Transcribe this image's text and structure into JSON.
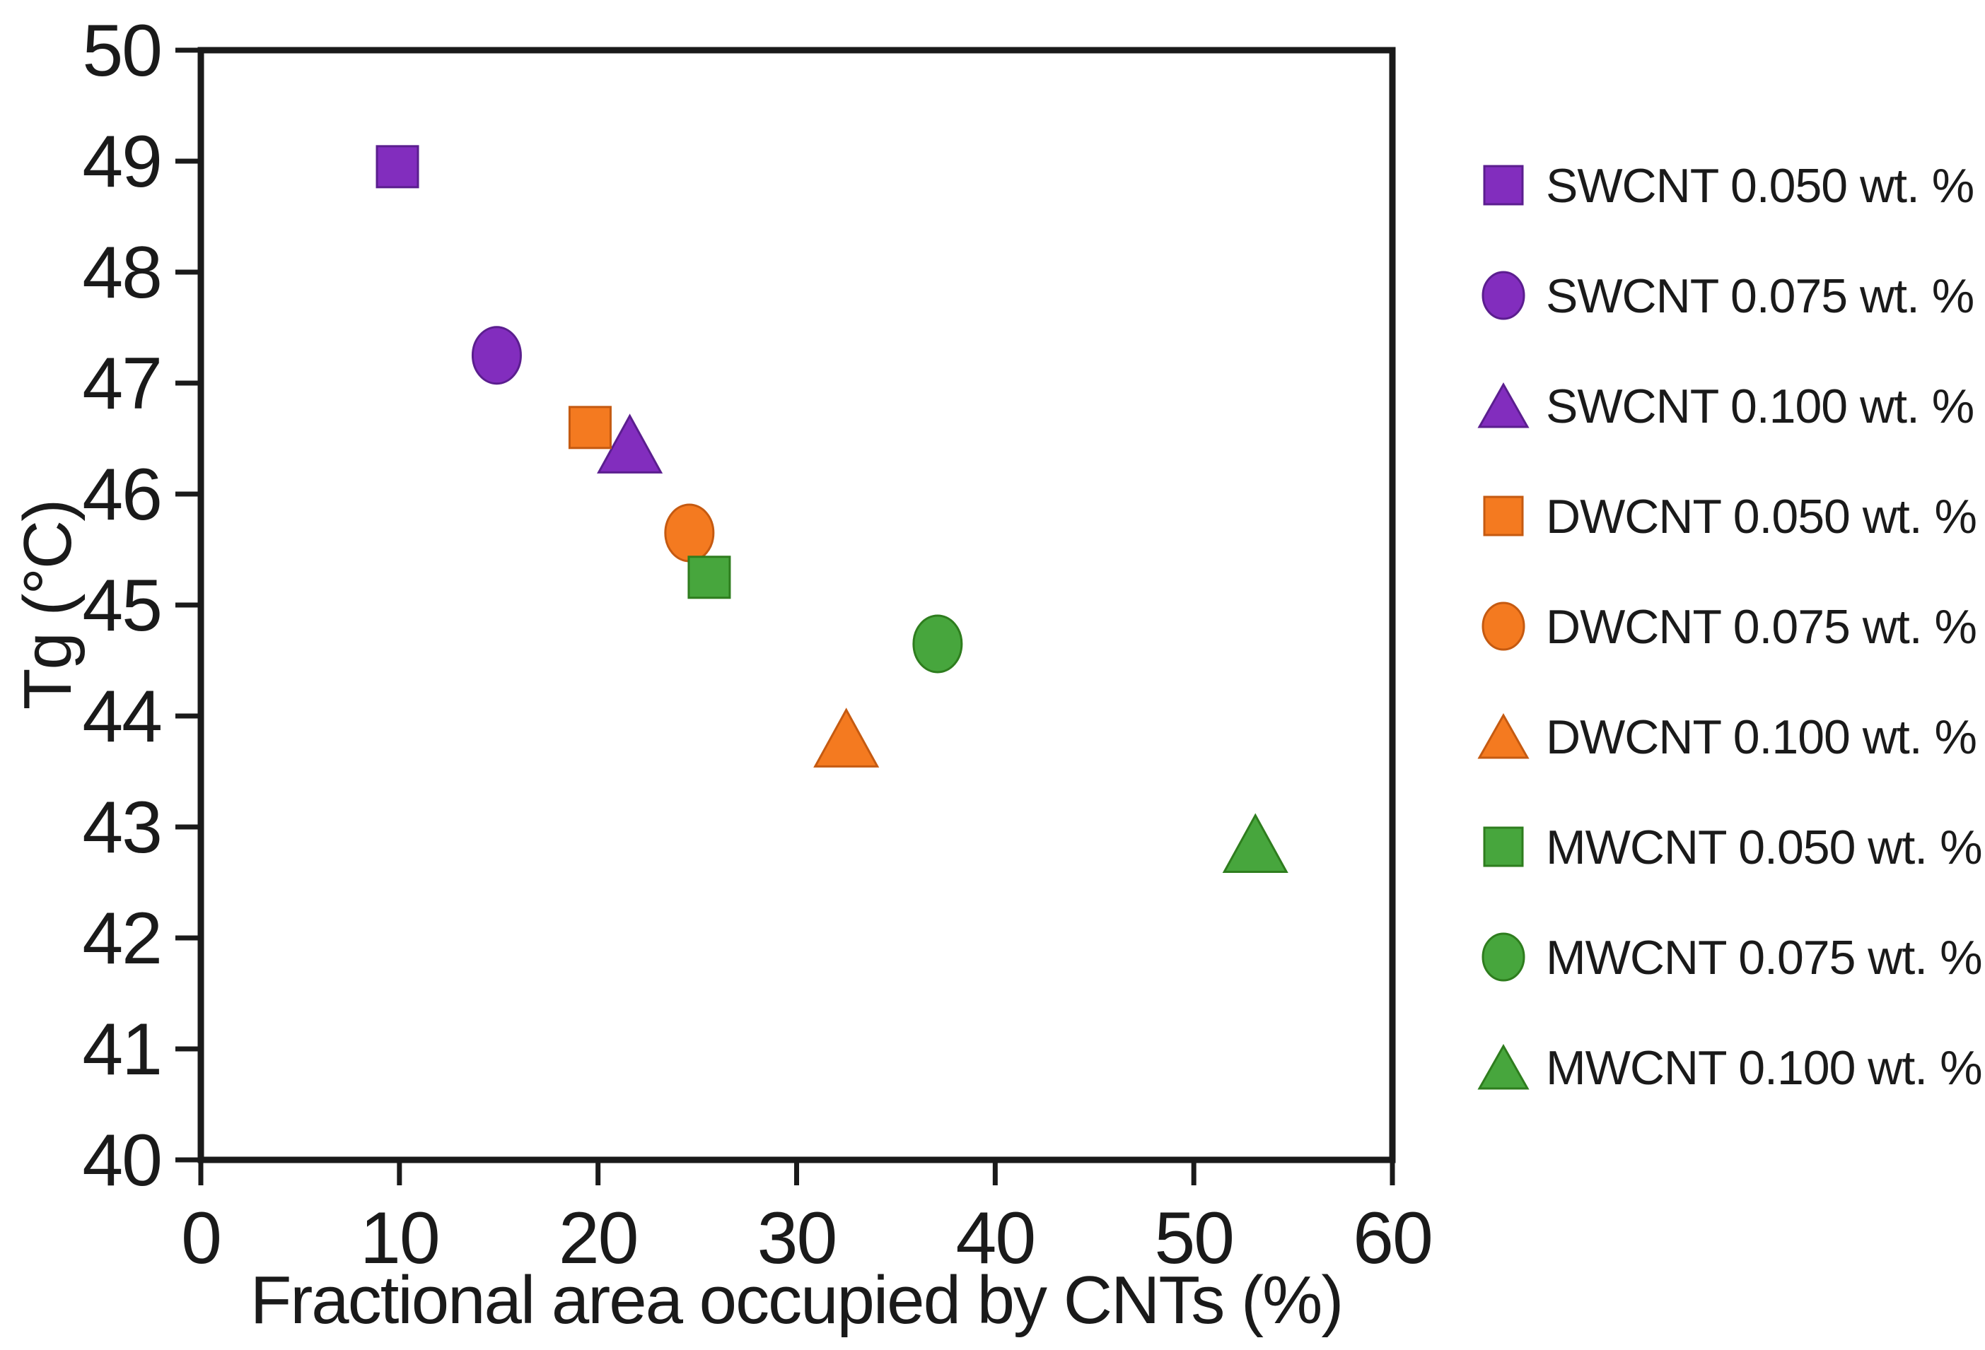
{
  "chart_data": {
    "type": "scatter",
    "title": "",
    "xlabel": "Fractional area occupied by CNTs (%)",
    "ylabel": "Tg (°C)",
    "xlim": [
      0,
      60
    ],
    "ylim": [
      40,
      50
    ],
    "xticks": [
      0,
      10,
      20,
      30,
      40,
      50,
      60
    ],
    "yticks": [
      40,
      41,
      42,
      43,
      44,
      45,
      46,
      47,
      48,
      49,
      50
    ],
    "grid": false,
    "legend_position": "right",
    "axis_color": "#1a1a1a",
    "series": [
      {
        "name": "SWCNT 0.050 wt. %",
        "marker": "square",
        "color": "#822DBE",
        "edge": "#5B1E8F",
        "points": [
          [
            9.9,
            48.95
          ]
        ]
      },
      {
        "name": "SWCNT 0.075 wt. %",
        "marker": "circle",
        "color": "#822DBE",
        "edge": "#5B1E8F",
        "points": [
          [
            14.9,
            47.25
          ]
        ]
      },
      {
        "name": "SWCNT 0.100 wt. %",
        "marker": "triangle",
        "color": "#822DBE",
        "edge": "#5B1E8F",
        "points": [
          [
            21.6,
            46.45
          ]
        ]
      },
      {
        "name": "DWCNT 0.050 wt. %",
        "marker": "square",
        "color": "#F47A20",
        "edge": "#C55A11",
        "points": [
          [
            19.6,
            46.6
          ]
        ]
      },
      {
        "name": "DWCNT 0.075 wt. %",
        "marker": "circle",
        "color": "#F47A20",
        "edge": "#C55A11",
        "points": [
          [
            24.6,
            45.65
          ]
        ]
      },
      {
        "name": "DWCNT 0.100 wt. %",
        "marker": "triangle",
        "color": "#F47A20",
        "edge": "#C55A11",
        "points": [
          [
            32.5,
            43.8
          ]
        ]
      },
      {
        "name": "MWCNT 0.050 wt. %",
        "marker": "square",
        "color": "#47A63D",
        "edge": "#2E7D1E",
        "points": [
          [
            25.6,
            45.25
          ]
        ]
      },
      {
        "name": "MWCNT 0.075 wt. %",
        "marker": "circle",
        "color": "#47A63D",
        "edge": "#2E7D1E",
        "points": [
          [
            37.1,
            44.65
          ]
        ]
      },
      {
        "name": "MWCNT 0.100 wt. %",
        "marker": "triangle",
        "color": "#47A63D",
        "edge": "#2E7D1E",
        "points": [
          [
            53.1,
            42.85
          ]
        ]
      }
    ]
  }
}
